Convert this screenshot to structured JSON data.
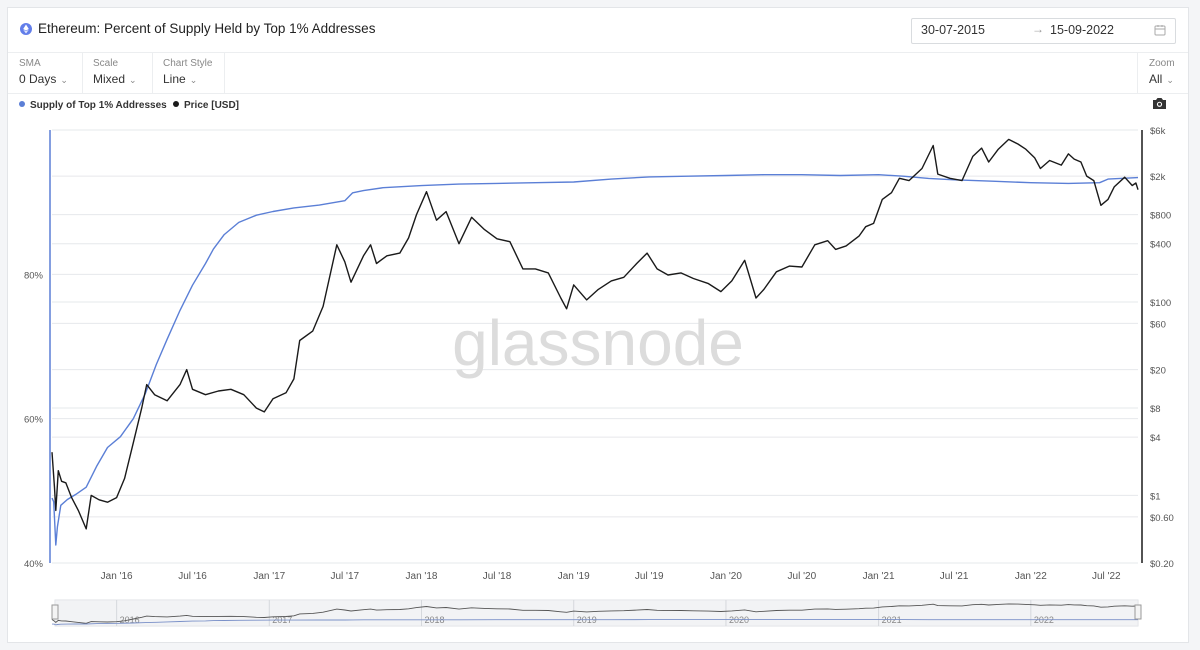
{
  "header": {
    "title": "Ethereum: Percent of Supply Held by Top 1% Addresses",
    "date_from": "30-07-2015",
    "date_arrow": "→",
    "date_to": "15-09-2022"
  },
  "controls": {
    "sma": {
      "label": "SMA",
      "value": "0 Days"
    },
    "scale": {
      "label": "Scale",
      "value": "Mixed"
    },
    "chart_style": {
      "label": "Chart Style",
      "value": "Line"
    },
    "zoom": {
      "label": "Zoom",
      "value": "All"
    }
  },
  "icons": {
    "asset": "ethereum-icon",
    "calendar": "calendar-icon",
    "camera": "camera-icon",
    "chevron": "chevron-down-icon"
  },
  "colors": {
    "supply": "#5b7fd6",
    "price": "#1a1a1a",
    "watermark": "#dcdcdc",
    "navigator": "#e9ebee"
  },
  "watermark": "glassnode",
  "chart_data": {
    "type": "line",
    "title": "Ethereum: Percent of Supply Held by Top 1% Addresses",
    "legend": {
      "placement": "top-left",
      "entries": [
        "Supply of Top 1% Addresses",
        "Price [USD]"
      ]
    },
    "x_axis": {
      "range": [
        "2015-07-30",
        "2022-09-15"
      ],
      "ticks": [
        {
          "date": "2016-01-01",
          "label": "Jan '16"
        },
        {
          "date": "2016-07-01",
          "label": "Jul '16"
        },
        {
          "date": "2017-01-01",
          "label": "Jan '17"
        },
        {
          "date": "2017-07-01",
          "label": "Jul '17"
        },
        {
          "date": "2018-01-01",
          "label": "Jan '18"
        },
        {
          "date": "2018-07-01",
          "label": "Jul '18"
        },
        {
          "date": "2019-01-01",
          "label": "Jan '19"
        },
        {
          "date": "2019-07-01",
          "label": "Jul '19"
        },
        {
          "date": "2020-01-01",
          "label": "Jan '20"
        },
        {
          "date": "2020-07-01",
          "label": "Jul '20"
        },
        {
          "date": "2021-01-01",
          "label": "Jan '21"
        },
        {
          "date": "2021-07-01",
          "label": "Jul '21"
        },
        {
          "date": "2022-01-01",
          "label": "Jan '22"
        },
        {
          "date": "2022-07-01",
          "label": "Jul '22"
        }
      ]
    },
    "y_left": {
      "scale": "linear",
      "unit": "%",
      "range": [
        40,
        100
      ],
      "ticks": [
        {
          "value": 40,
          "label": "40%"
        },
        {
          "value": 60,
          "label": "60%"
        },
        {
          "value": 80,
          "label": "80%"
        }
      ]
    },
    "y_right": {
      "scale": "log",
      "unit": "USD",
      "range": [
        0.2,
        6000
      ],
      "ticks": [
        {
          "value": 6000,
          "label": "$6k"
        },
        {
          "value": 2000,
          "label": "$2k"
        },
        {
          "value": 800,
          "label": "$800"
        },
        {
          "value": 400,
          "label": "$400"
        },
        {
          "value": 100,
          "label": "$100"
        },
        {
          "value": 60,
          "label": "$60"
        },
        {
          "value": 20,
          "label": "$20"
        },
        {
          "value": 8,
          "label": "$8"
        },
        {
          "value": 4,
          "label": "$4"
        },
        {
          "value": 1,
          "label": "$1"
        },
        {
          "value": 0.6,
          "label": "$0.60"
        },
        {
          "value": 0.2,
          "label": "$0.20"
        }
      ]
    },
    "grid": true,
    "series": [
      {
        "name": "Supply of Top 1% Addresses",
        "axis": "left",
        "color": "#5b7fd6",
        "points": [
          [
            "2015-07-30",
            49.0
          ],
          [
            "2015-08-03",
            48.5
          ],
          [
            "2015-08-08",
            42.5
          ],
          [
            "2015-08-12",
            45.0
          ],
          [
            "2015-08-20",
            48.0
          ],
          [
            "2015-09-05",
            48.8
          ],
          [
            "2015-09-25",
            49.5
          ],
          [
            "2015-10-20",
            50.5
          ],
          [
            "2015-11-15",
            53.5
          ],
          [
            "2015-12-10",
            56.0
          ],
          [
            "2016-01-10",
            57.5
          ],
          [
            "2016-02-10",
            60.0
          ],
          [
            "2016-03-10",
            63.5
          ],
          [
            "2016-04-05",
            67.5
          ],
          [
            "2016-05-01",
            71.0
          ],
          [
            "2016-06-01",
            75.0
          ],
          [
            "2016-07-01",
            78.5
          ],
          [
            "2016-08-01",
            81.5
          ],
          [
            "2016-08-20",
            83.5
          ],
          [
            "2016-09-15",
            85.5
          ],
          [
            "2016-10-20",
            87.2
          ],
          [
            "2016-12-01",
            88.2
          ],
          [
            "2017-01-10",
            88.7
          ],
          [
            "2017-03-01",
            89.2
          ],
          [
            "2017-05-01",
            89.6
          ],
          [
            "2017-07-01",
            90.2
          ],
          [
            "2017-07-20",
            91.3
          ],
          [
            "2017-08-15",
            91.6
          ],
          [
            "2017-10-01",
            92.0
          ],
          [
            "2018-01-01",
            92.3
          ],
          [
            "2018-04-01",
            92.5
          ],
          [
            "2018-07-01",
            92.6
          ],
          [
            "2018-10-01",
            92.7
          ],
          [
            "2019-01-01",
            92.8
          ],
          [
            "2019-04-01",
            93.2
          ],
          [
            "2019-07-01",
            93.5
          ],
          [
            "2019-10-01",
            93.6
          ],
          [
            "2020-01-01",
            93.7
          ],
          [
            "2020-04-01",
            93.8
          ],
          [
            "2020-07-01",
            93.8
          ],
          [
            "2020-10-01",
            93.7
          ],
          [
            "2021-01-01",
            93.8
          ],
          [
            "2021-03-01",
            93.6
          ],
          [
            "2021-05-01",
            93.3
          ],
          [
            "2021-07-01",
            93.1
          ],
          [
            "2021-10-01",
            92.9
          ],
          [
            "2022-01-01",
            92.7
          ],
          [
            "2022-04-01",
            92.6
          ],
          [
            "2022-06-15",
            92.7
          ],
          [
            "2022-07-05",
            93.2
          ],
          [
            "2022-09-15",
            93.4
          ]
        ]
      },
      {
        "name": "Price [USD]",
        "axis": "right",
        "color": "#1a1a1a",
        "points": [
          [
            "2015-07-30",
            2.8
          ],
          [
            "2015-08-05",
            1.2
          ],
          [
            "2015-08-08",
            0.7
          ],
          [
            "2015-08-14",
            1.8
          ],
          [
            "2015-08-22",
            1.4
          ],
          [
            "2015-09-01",
            1.35
          ],
          [
            "2015-09-15",
            0.95
          ],
          [
            "2015-10-01",
            0.7
          ],
          [
            "2015-10-20",
            0.45
          ],
          [
            "2015-11-01",
            1.0
          ],
          [
            "2015-11-20",
            0.9
          ],
          [
            "2015-12-10",
            0.85
          ],
          [
            "2016-01-01",
            0.95
          ],
          [
            "2016-01-20",
            1.5
          ],
          [
            "2016-02-10",
            3.5
          ],
          [
            "2016-03-01",
            8.0
          ],
          [
            "2016-03-13",
            14.0
          ],
          [
            "2016-04-01",
            11.0
          ],
          [
            "2016-05-01",
            9.5
          ],
          [
            "2016-06-01",
            14.0
          ],
          [
            "2016-06-17",
            20.0
          ],
          [
            "2016-07-01",
            12.5
          ],
          [
            "2016-08-01",
            11.0
          ],
          [
            "2016-09-01",
            12.0
          ],
          [
            "2016-10-01",
            12.5
          ],
          [
            "2016-11-01",
            11.0
          ],
          [
            "2016-12-01",
            8.0
          ],
          [
            "2016-12-20",
            7.3
          ],
          [
            "2017-01-10",
            10.0
          ],
          [
            "2017-02-10",
            11.5
          ],
          [
            "2017-03-01",
            16.0
          ],
          [
            "2017-03-15",
            40.0
          ],
          [
            "2017-04-15",
            50.0
          ],
          [
            "2017-05-10",
            90.0
          ],
          [
            "2017-06-12",
            390.0
          ],
          [
            "2017-07-01",
            260.0
          ],
          [
            "2017-07-16",
            160.0
          ],
          [
            "2017-08-15",
            300.0
          ],
          [
            "2017-09-01",
            390.0
          ],
          [
            "2017-09-15",
            250.0
          ],
          [
            "2017-10-10",
            300.0
          ],
          [
            "2017-11-10",
            320.0
          ],
          [
            "2017-12-01",
            460.0
          ],
          [
            "2017-12-20",
            800.0
          ],
          [
            "2018-01-13",
            1380.0
          ],
          [
            "2018-02-06",
            700.0
          ],
          [
            "2018-03-01",
            860.0
          ],
          [
            "2018-04-01",
            400.0
          ],
          [
            "2018-05-01",
            750.0
          ],
          [
            "2018-06-01",
            560.0
          ],
          [
            "2018-07-01",
            450.0
          ],
          [
            "2018-08-01",
            420.0
          ],
          [
            "2018-09-01",
            220.0
          ],
          [
            "2018-10-01",
            220.0
          ],
          [
            "2018-11-01",
            200.0
          ],
          [
            "2018-12-01",
            110.0
          ],
          [
            "2018-12-15",
            85.0
          ],
          [
            "2019-01-01",
            150.0
          ],
          [
            "2019-02-01",
            105.0
          ],
          [
            "2019-03-01",
            135.0
          ],
          [
            "2019-04-01",
            165.0
          ],
          [
            "2019-05-01",
            180.0
          ],
          [
            "2019-06-01",
            250.0
          ],
          [
            "2019-06-26",
            320.0
          ],
          [
            "2019-07-20",
            220.0
          ],
          [
            "2019-08-15",
            190.0
          ],
          [
            "2019-09-15",
            200.0
          ],
          [
            "2019-10-15",
            175.0
          ],
          [
            "2019-11-20",
            155.0
          ],
          [
            "2019-12-20",
            128.0
          ],
          [
            "2020-01-15",
            165.0
          ],
          [
            "2020-02-15",
            270.0
          ],
          [
            "2020-03-13",
            110.0
          ],
          [
            "2020-04-01",
            135.0
          ],
          [
            "2020-05-01",
            205.0
          ],
          [
            "2020-06-01",
            235.0
          ],
          [
            "2020-07-01",
            230.0
          ],
          [
            "2020-08-01",
            390.0
          ],
          [
            "2020-09-01",
            430.0
          ],
          [
            "2020-09-20",
            350.0
          ],
          [
            "2020-10-15",
            380.0
          ],
          [
            "2020-11-15",
            480.0
          ],
          [
            "2020-12-01",
            600.0
          ],
          [
            "2020-12-20",
            650.0
          ],
          [
            "2021-01-10",
            1150.0
          ],
          [
            "2021-02-01",
            1350.0
          ],
          [
            "2021-02-20",
            1900.0
          ],
          [
            "2021-03-15",
            1800.0
          ],
          [
            "2021-04-15",
            2400.0
          ],
          [
            "2021-05-12",
            4150.0
          ],
          [
            "2021-05-23",
            2100.0
          ],
          [
            "2021-06-21",
            1900.0
          ],
          [
            "2021-07-20",
            1800.0
          ],
          [
            "2021-08-15",
            3200.0
          ],
          [
            "2021-09-05",
            3900.0
          ],
          [
            "2021-09-22",
            2800.0
          ],
          [
            "2021-10-15",
            3800.0
          ],
          [
            "2021-11-09",
            4800.0
          ],
          [
            "2021-12-01",
            4300.0
          ],
          [
            "2021-12-20",
            3800.0
          ],
          [
            "2022-01-10",
            3100.0
          ],
          [
            "2022-01-24",
            2400.0
          ],
          [
            "2022-02-15",
            2900.0
          ],
          [
            "2022-03-15",
            2600.0
          ],
          [
            "2022-04-01",
            3400.0
          ],
          [
            "2022-04-15",
            3000.0
          ],
          [
            "2022-05-01",
            2800.0
          ],
          [
            "2022-05-15",
            2000.0
          ],
          [
            "2022-06-01",
            1800.0
          ],
          [
            "2022-06-18",
            1000.0
          ],
          [
            "2022-07-05",
            1150.0
          ],
          [
            "2022-07-20",
            1550.0
          ],
          [
            "2022-08-14",
            1950.0
          ],
          [
            "2022-09-01",
            1600.0
          ],
          [
            "2022-09-10",
            1700.0
          ],
          [
            "2022-09-15",
            1450.0
          ]
        ]
      }
    ],
    "navigator": {
      "year_labels": [
        "2016",
        "2017",
        "2018",
        "2019",
        "2020",
        "2021",
        "2022"
      ]
    }
  }
}
